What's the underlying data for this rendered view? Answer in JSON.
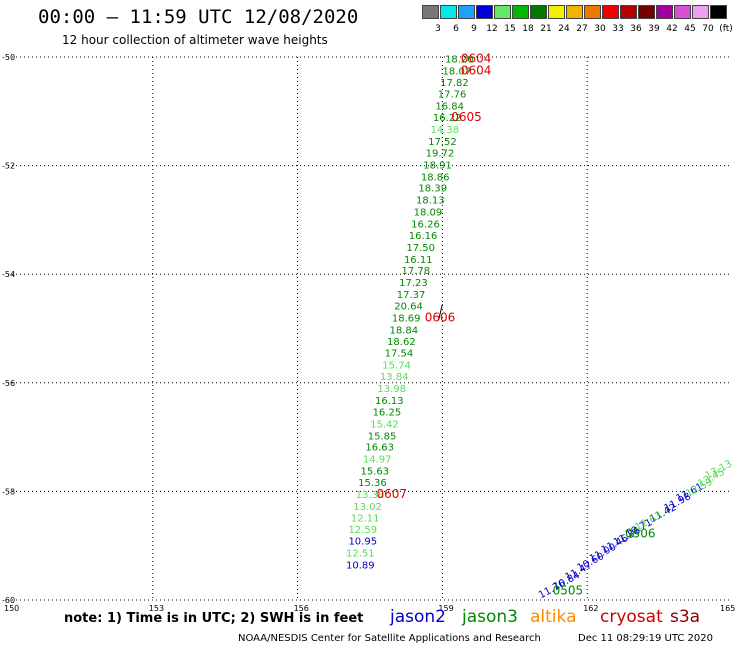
{
  "header": {
    "title": "00:00 — 11:59 UTC 12/08/2020",
    "subtitle": "12 hour collection of altimeter wave heights"
  },
  "legend": {
    "items": [
      {
        "label": "3",
        "color": "#777777"
      },
      {
        "label": "6",
        "color": "#00e8e8"
      },
      {
        "label": "9",
        "color": "#1ea0ff"
      },
      {
        "label": "12",
        "color": "#0000d8"
      },
      {
        "label": "15",
        "color": "#66e866"
      },
      {
        "label": "18",
        "color": "#00b800"
      },
      {
        "label": "21",
        "color": "#007800"
      },
      {
        "label": "24",
        "color": "#f0f000"
      },
      {
        "label": "27",
        "color": "#f0b400"
      },
      {
        "label": "30",
        "color": "#f07800"
      },
      {
        "label": "33",
        "color": "#f00000"
      },
      {
        "label": "36",
        "color": "#b40000"
      },
      {
        "label": "39",
        "color": "#780000"
      },
      {
        "label": "42",
        "color": "#a000a0"
      },
      {
        "label": "45",
        "color": "#d850d8"
      },
      {
        "label": "70",
        "color": "#f0a0f0"
      },
      {
        "label": "(ft)",
        "color": "#000000"
      }
    ]
  },
  "footer": {
    "note": "note: 1) Time is in UTC; 2) SWH is in feet",
    "credit": "NOAA/NESDIS Center for Satellite Applications and Research",
    "timestamp": "Dec 11 08:29:19 UTC 2020",
    "satellites": [
      {
        "name": "jason2",
        "color": "#0000cc"
      },
      {
        "name": "jason3",
        "color": "#008800"
      },
      {
        "name": "altika",
        "color": "#ff8c00"
      },
      {
        "name": "cryosat",
        "color": "#cc0000"
      },
      {
        "name": "s3a",
        "color": "#880000"
      }
    ]
  },
  "chart_data": {
    "type": "scatter",
    "xlim": [
      150,
      165
    ],
    "ylim": [
      -60,
      -50
    ],
    "x_ticks": [
      "150",
      "153",
      "156",
      "159",
      "162",
      "165"
    ],
    "y_ticks": [
      "-50",
      "-52",
      "-54",
      "-56",
      "-58",
      "-60"
    ],
    "grid": true,
    "colors": {
      "jason2": "#0000cc",
      "jason3": "#008800",
      "jason3_light": "#55dd55",
      "time": "#dd0000"
    },
    "series": [
      {
        "name": "jason3",
        "points": [
          {
            "lon": 159.35,
            "lat": -50.1,
            "swh": "18.20",
            "shade": "dark"
          },
          {
            "lon": 159.3,
            "lat": -50.32,
            "swh": "18.07",
            "shade": "dark"
          },
          {
            "lon": 159.25,
            "lat": -50.53,
            "swh": "17.82",
            "shade": "dark"
          },
          {
            "lon": 159.2,
            "lat": -50.75,
            "swh": "17.76",
            "shade": "dark"
          },
          {
            "lon": 159.15,
            "lat": -50.97,
            "swh": "16.84",
            "shade": "dark"
          },
          {
            "lon": 159.1,
            "lat": -51.18,
            "swh": "16.22",
            "shade": "dark"
          },
          {
            "lon": 159.05,
            "lat": -51.4,
            "swh": "14.38",
            "shade": "light"
          },
          {
            "lon": 159.0,
            "lat": -51.62,
            "swh": "17.52",
            "shade": "dark"
          },
          {
            "lon": 158.95,
            "lat": -51.83,
            "swh": "19.72",
            "shade": "dark"
          },
          {
            "lon": 158.9,
            "lat": -52.05,
            "swh": "18.91",
            "shade": "dark"
          },
          {
            "lon": 158.85,
            "lat": -52.27,
            "swh": "18.86",
            "shade": "dark"
          },
          {
            "lon": 158.8,
            "lat": -52.48,
            "swh": "18.39",
            "shade": "dark"
          },
          {
            "lon": 158.75,
            "lat": -52.7,
            "swh": "18.13",
            "shade": "dark"
          },
          {
            "lon": 158.7,
            "lat": -52.92,
            "swh": "18.09",
            "shade": "dark"
          },
          {
            "lon": 158.65,
            "lat": -53.14,
            "swh": "16.26",
            "shade": "dark"
          },
          {
            "lon": 158.6,
            "lat": -53.35,
            "swh": "16.16",
            "shade": "dark"
          },
          {
            "lon": 158.55,
            "lat": -53.57,
            "swh": "17.50",
            "shade": "dark"
          },
          {
            "lon": 158.5,
            "lat": -53.79,
            "swh": "16.11",
            "shade": "dark"
          },
          {
            "lon": 158.45,
            "lat": -54.0,
            "swh": "17.78",
            "shade": "dark"
          },
          {
            "lon": 158.4,
            "lat": -54.22,
            "swh": "17.23",
            "shade": "dark"
          },
          {
            "lon": 158.35,
            "lat": -54.44,
            "swh": "17.37",
            "shade": "dark"
          },
          {
            "lon": 158.3,
            "lat": -54.65,
            "swh": "20.64",
            "shade": "dark"
          },
          {
            "lon": 158.25,
            "lat": -54.87,
            "swh": "18.69",
            "shade": "dark"
          },
          {
            "lon": 158.2,
            "lat": -55.09,
            "swh": "18.84",
            "shade": "dark"
          },
          {
            "lon": 158.15,
            "lat": -55.3,
            "swh": "18.62",
            "shade": "dark"
          },
          {
            "lon": 158.1,
            "lat": -55.52,
            "swh": "17.54",
            "shade": "dark"
          },
          {
            "lon": 158.05,
            "lat": -55.74,
            "swh": "15.74",
            "shade": "light"
          },
          {
            "lon": 158.0,
            "lat": -55.95,
            "swh": "13.84",
            "shade": "light"
          },
          {
            "lon": 157.95,
            "lat": -56.17,
            "swh": "13.98",
            "shade": "light"
          },
          {
            "lon": 157.9,
            "lat": -56.39,
            "swh": "16.13",
            "shade": "dark"
          },
          {
            "lon": 157.85,
            "lat": -56.6,
            "swh": "16.25",
            "shade": "dark"
          },
          {
            "lon": 157.8,
            "lat": -56.82,
            "swh": "15.42",
            "shade": "light"
          },
          {
            "lon": 157.75,
            "lat": -57.04,
            "swh": "15.85",
            "shade": "dark"
          },
          {
            "lon": 157.7,
            "lat": -57.25,
            "swh": "16.63",
            "shade": "dark"
          },
          {
            "lon": 157.65,
            "lat": -57.47,
            "swh": "14.97",
            "shade": "light"
          },
          {
            "lon": 157.6,
            "lat": -57.69,
            "swh": "15.63",
            "shade": "dark"
          },
          {
            "lon": 157.55,
            "lat": -57.9,
            "swh": "15.36",
            "shade": "dark"
          },
          {
            "lon": 157.5,
            "lat": -58.12,
            "swh": "13.38",
            "shade": "light"
          },
          {
            "lon": 157.45,
            "lat": -58.34,
            "swh": "13.02",
            "shade": "light"
          },
          {
            "lon": 157.4,
            "lat": -58.55,
            "swh": "12.11",
            "shade": "light"
          },
          {
            "lon": 157.35,
            "lat": -58.77,
            "swh": "12.59",
            "shade": "light"
          },
          {
            "lon": 157.3,
            "lat": -59.2,
            "swh": "12.51",
            "shade": "light"
          }
        ]
      },
      {
        "name": "jason2",
        "points": [
          {
            "lon": 157.35,
            "lat": -58.98,
            "swh": "10.95",
            "shade": "dark"
          },
          {
            "lon": 157.3,
            "lat": -59.42,
            "swh": "10.89",
            "shade": "dark"
          },
          {
            "lon": 161.3,
            "lat": -59.85,
            "swh": "11.76",
            "shade": "dark"
          },
          {
            "lon": 161.6,
            "lat": -59.7,
            "swh": "10.84",
            "shade": "dark"
          },
          {
            "lon": 161.85,
            "lat": -59.52,
            "swh": "11.47",
            "shade": "dark"
          },
          {
            "lon": 162.1,
            "lat": -59.35,
            "swh": "10.60",
            "shade": "dark"
          },
          {
            "lon": 162.35,
            "lat": -59.18,
            "swh": "11.00",
            "shade": "dark"
          },
          {
            "lon": 162.6,
            "lat": -59.02,
            "swh": "11.46",
            "shade": "dark"
          },
          {
            "lon": 162.85,
            "lat": -58.88,
            "swh": "11.36",
            "shade": "dark"
          },
          {
            "lon": 163.1,
            "lat": -58.73,
            "swh": "10.71",
            "shade": "dark"
          },
          {
            "lon": 163.6,
            "lat": -58.45,
            "swh": "11.42",
            "shade": "dark"
          },
          {
            "lon": 163.9,
            "lat": -58.25,
            "swh": "11.98",
            "shade": "dark"
          },
          {
            "lon": 164.15,
            "lat": -58.07,
            "swh": "11.61",
            "shade": "dark"
          }
        ]
      },
      {
        "name": "jason3-south",
        "points": [
          {
            "lon": 163.3,
            "lat": -58.6,
            "swh": "12.63",
            "shade": "light"
          },
          {
            "lon": 164.35,
            "lat": -57.98,
            "swh": "12.59",
            "shade": "light"
          },
          {
            "lon": 164.6,
            "lat": -57.8,
            "swh": "13.45",
            "shade": "light"
          },
          {
            "lon": 164.75,
            "lat": -57.65,
            "swh": "13.13",
            "shade": "light"
          }
        ]
      }
    ],
    "time_labels": [
      {
        "text": "0604",
        "lon": 159.7,
        "lat": -50.1,
        "color": "red"
      },
      {
        "text": "0604",
        "lon": 159.7,
        "lat": -50.32,
        "color": "red"
      },
      {
        "text": "0605",
        "lon": 159.5,
        "lat": -51.18,
        "color": "red"
      },
      {
        "text": "0606",
        "lon": 158.95,
        "lat": -54.87,
        "color": "red"
      },
      {
        "text": "0607",
        "lon": 157.95,
        "lat": -58.12,
        "color": "red"
      },
      {
        "text": "0506",
        "lon": 163.1,
        "lat": -58.85,
        "color": "green"
      },
      {
        "text": "0505",
        "lon": 161.6,
        "lat": -59.9,
        "color": "green"
      }
    ]
  }
}
